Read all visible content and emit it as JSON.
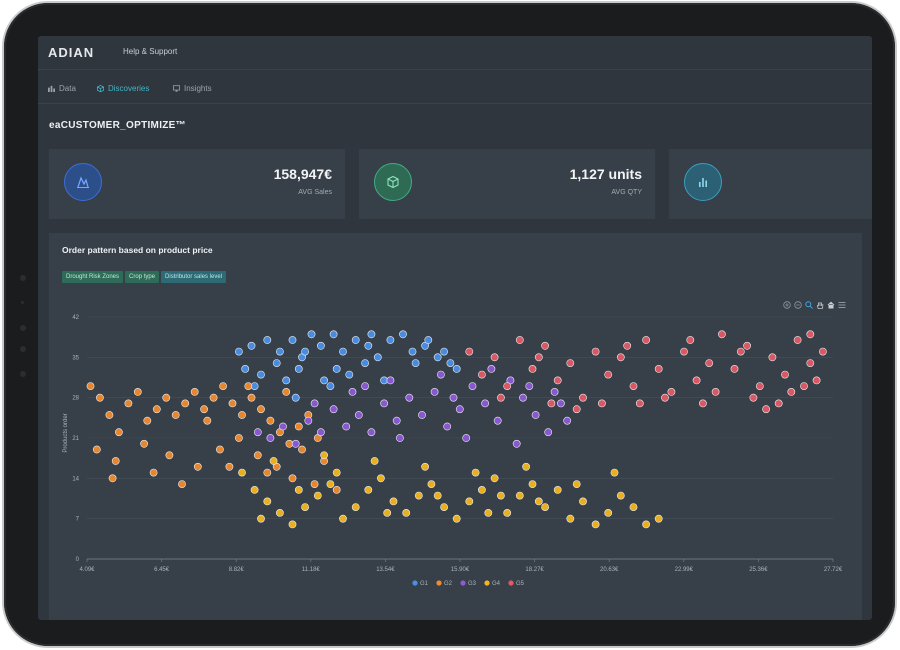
{
  "app": {
    "logo": "ADIAN",
    "help_link": "Help & Support"
  },
  "nav": {
    "items": [
      {
        "label": "Data",
        "icon": "bar-chart-icon",
        "active": false
      },
      {
        "label": "Discoveries",
        "icon": "cube-icon",
        "active": true
      },
      {
        "label": "Insights",
        "icon": "monitor-icon",
        "active": false
      }
    ]
  },
  "page": {
    "title": "eaCUSTOMER_OPTIMIZE™"
  },
  "cards": [
    {
      "value": "158,947€",
      "label": "AVG Sales",
      "icon": "sales-trend-icon",
      "color": "#3a6fd8"
    },
    {
      "value": "1,127 units",
      "label": "AVG QTY",
      "icon": "box-icon",
      "color": "#3fae80"
    },
    {
      "value": "",
      "label": "",
      "icon": "bar-chart-icon",
      "color": "#3a9fc0"
    }
  ],
  "chart": {
    "title": "Order pattern based on product price",
    "filters": [
      "Drought Risk Zones",
      "Crop type",
      "Distributor sales level"
    ]
  },
  "chart_data": {
    "type": "scatter",
    "ylabel": "Products order",
    "xlabel": "",
    "y_ticks": [
      "0",
      "7",
      "14",
      "21",
      "28",
      "35",
      "42"
    ],
    "x_ticks": [
      "4.09€",
      "6.45€",
      "8.82€",
      "11.18€",
      "13.54€",
      "15.90€",
      "18.27€",
      "20.63€",
      "22.99€",
      "25.36€",
      "27.72€"
    ],
    "xlim": [
      4.09,
      27.72
    ],
    "ylim": [
      0,
      42
    ],
    "legend_position": "bottom",
    "series": [
      {
        "name": "G1",
        "color": "#4a8fe8",
        "points": [
          [
            8.9,
            36
          ],
          [
            9.3,
            37
          ],
          [
            9.8,
            38
          ],
          [
            10.2,
            36
          ],
          [
            10.6,
            38
          ],
          [
            10.9,
            35
          ],
          [
            11.2,
            39
          ],
          [
            11.5,
            37
          ],
          [
            11.9,
            39
          ],
          [
            12.2,
            36
          ],
          [
            12.6,
            38
          ],
          [
            13.0,
            37
          ],
          [
            13.3,
            35
          ],
          [
            13.7,
            38
          ],
          [
            14.1,
            39
          ],
          [
            14.4,
            36
          ],
          [
            14.8,
            37
          ],
          [
            15.2,
            35
          ],
          [
            15.6,
            34
          ],
          [
            9.1,
            33
          ],
          [
            9.6,
            32
          ],
          [
            10.1,
            34
          ],
          [
            10.8,
            33
          ],
          [
            11.6,
            31
          ],
          [
            12.4,
            32
          ],
          [
            13.5,
            31
          ],
          [
            14.5,
            34
          ],
          [
            15.8,
            33
          ],
          [
            12.0,
            33
          ],
          [
            9.4,
            30
          ],
          [
            10.4,
            31
          ],
          [
            11.0,
            36
          ],
          [
            12.9,
            34
          ],
          [
            14.9,
            38
          ],
          [
            15.4,
            36
          ],
          [
            13.1,
            39
          ],
          [
            11.8,
            30
          ],
          [
            10.7,
            28
          ]
        ]
      },
      {
        "name": "G2",
        "color": "#ef8a2e",
        "points": [
          [
            4.2,
            30
          ],
          [
            4.5,
            28
          ],
          [
            4.8,
            25
          ],
          [
            5.1,
            22
          ],
          [
            5.4,
            27
          ],
          [
            5.7,
            29
          ],
          [
            6.0,
            24
          ],
          [
            6.3,
            26
          ],
          [
            6.6,
            28
          ],
          [
            6.9,
            25
          ],
          [
            7.2,
            27
          ],
          [
            7.5,
            29
          ],
          [
            7.8,
            26
          ],
          [
            8.1,
            28
          ],
          [
            8.4,
            30
          ],
          [
            8.7,
            27
          ],
          [
            9.0,
            25
          ],
          [
            9.3,
            28
          ],
          [
            9.6,
            26
          ],
          [
            9.9,
            24
          ],
          [
            10.2,
            22
          ],
          [
            10.5,
            20
          ],
          [
            10.8,
            23
          ],
          [
            11.1,
            25
          ],
          [
            11.4,
            21
          ],
          [
            4.4,
            19
          ],
          [
            5.0,
            17
          ],
          [
            5.9,
            20
          ],
          [
            6.7,
            18
          ],
          [
            7.6,
            16
          ],
          [
            8.3,
            19
          ],
          [
            8.9,
            21
          ],
          [
            9.5,
            18
          ],
          [
            10.1,
            16
          ],
          [
            10.9,
            19
          ],
          [
            11.6,
            17
          ],
          [
            4.9,
            14
          ],
          [
            6.2,
            15
          ],
          [
            7.1,
            13
          ],
          [
            8.6,
            16
          ],
          [
            9.8,
            15
          ],
          [
            10.6,
            14
          ],
          [
            11.3,
            13
          ],
          [
            12.0,
            12
          ],
          [
            7.9,
            24
          ],
          [
            9.2,
            30
          ],
          [
            10.4,
            29
          ]
        ]
      },
      {
        "name": "G3",
        "color": "#8e5ad6",
        "points": [
          [
            9.5,
            22
          ],
          [
            9.9,
            21
          ],
          [
            10.3,
            23
          ],
          [
            10.7,
            20
          ],
          [
            11.1,
            24
          ],
          [
            11.5,
            22
          ],
          [
            11.9,
            26
          ],
          [
            12.3,
            23
          ],
          [
            12.7,
            25
          ],
          [
            13.1,
            22
          ],
          [
            13.5,
            27
          ],
          [
            13.9,
            24
          ],
          [
            14.3,
            28
          ],
          [
            14.7,
            25
          ],
          [
            15.1,
            29
          ],
          [
            15.5,
            23
          ],
          [
            15.9,
            26
          ],
          [
            16.3,
            30
          ],
          [
            16.7,
            27
          ],
          [
            17.1,
            24
          ],
          [
            17.5,
            31
          ],
          [
            17.9,
            28
          ],
          [
            18.3,
            25
          ],
          [
            18.7,
            22
          ],
          [
            19.1,
            27
          ],
          [
            12.5,
            29
          ],
          [
            13.7,
            31
          ],
          [
            15.3,
            32
          ],
          [
            16.9,
            33
          ],
          [
            18.1,
            30
          ],
          [
            11.3,
            27
          ],
          [
            14.0,
            21
          ],
          [
            16.1,
            21
          ],
          [
            17.7,
            20
          ],
          [
            19.3,
            24
          ],
          [
            12.9,
            30
          ],
          [
            15.7,
            28
          ],
          [
            18.9,
            29
          ]
        ]
      },
      {
        "name": "G4",
        "color": "#f2b51e",
        "points": [
          [
            9.0,
            15
          ],
          [
            9.4,
            12
          ],
          [
            9.8,
            10
          ],
          [
            10.2,
            8
          ],
          [
            10.6,
            6
          ],
          [
            11.0,
            9
          ],
          [
            11.4,
            11
          ],
          [
            11.8,
            13
          ],
          [
            12.2,
            7
          ],
          [
            12.6,
            9
          ],
          [
            13.0,
            12
          ],
          [
            13.4,
            14
          ],
          [
            13.8,
            10
          ],
          [
            14.2,
            8
          ],
          [
            14.6,
            11
          ],
          [
            15.0,
            13
          ],
          [
            15.4,
            9
          ],
          [
            15.8,
            7
          ],
          [
            16.2,
            10
          ],
          [
            16.6,
            12
          ],
          [
            17.0,
            14
          ],
          [
            17.4,
            8
          ],
          [
            17.8,
            11
          ],
          [
            18.2,
            13
          ],
          [
            18.6,
            9
          ],
          [
            19.0,
            12
          ],
          [
            19.4,
            7
          ],
          [
            19.8,
            10
          ],
          [
            20.2,
            6
          ],
          [
            20.6,
            8
          ],
          [
            21.0,
            11
          ],
          [
            21.4,
            9
          ],
          [
            21.8,
            6
          ],
          [
            22.2,
            7
          ],
          [
            10.0,
            17
          ],
          [
            11.6,
            18
          ],
          [
            13.2,
            17
          ],
          [
            14.8,
            16
          ],
          [
            16.4,
            15
          ],
          [
            18.0,
            16
          ],
          [
            19.6,
            13
          ],
          [
            20.8,
            15
          ],
          [
            12.0,
            15
          ],
          [
            15.2,
            11
          ],
          [
            17.2,
            11
          ],
          [
            10.8,
            12
          ],
          [
            13.6,
            8
          ],
          [
            16.8,
            8
          ],
          [
            9.6,
            7
          ],
          [
            18.4,
            10
          ]
        ]
      },
      {
        "name": "G5",
        "color": "#e05a66",
        "points": [
          [
            16.2,
            36
          ],
          [
            16.6,
            32
          ],
          [
            17.0,
            35
          ],
          [
            17.4,
            30
          ],
          [
            17.8,
            38
          ],
          [
            18.2,
            33
          ],
          [
            18.6,
            37
          ],
          [
            19.0,
            31
          ],
          [
            19.4,
            34
          ],
          [
            19.8,
            28
          ],
          [
            20.2,
            36
          ],
          [
            20.6,
            32
          ],
          [
            21.0,
            35
          ],
          [
            21.4,
            30
          ],
          [
            21.8,
            38
          ],
          [
            22.2,
            33
          ],
          [
            22.6,
            29
          ],
          [
            23.0,
            36
          ],
          [
            23.4,
            31
          ],
          [
            23.8,
            34
          ],
          [
            24.2,
            39
          ],
          [
            24.6,
            33
          ],
          [
            25.0,
            37
          ],
          [
            25.4,
            30
          ],
          [
            25.8,
            35
          ],
          [
            26.2,
            32
          ],
          [
            26.6,
            38
          ],
          [
            27.0,
            34
          ],
          [
            27.4,
            36
          ],
          [
            18.8,
            27
          ],
          [
            20.4,
            27
          ],
          [
            22.4,
            28
          ],
          [
            23.6,
            27
          ],
          [
            25.2,
            28
          ],
          [
            26.8,
            30
          ],
          [
            17.2,
            28
          ],
          [
            21.6,
            27
          ],
          [
            24.0,
            29
          ],
          [
            26.0,
            27
          ],
          [
            27.2,
            31
          ],
          [
            19.6,
            26
          ],
          [
            23.2,
            38
          ],
          [
            25.6,
            26
          ],
          [
            27.0,
            39
          ],
          [
            18.4,
            35
          ],
          [
            21.2,
            37
          ],
          [
            24.8,
            36
          ],
          [
            26.4,
            29
          ]
        ]
      }
    ]
  }
}
